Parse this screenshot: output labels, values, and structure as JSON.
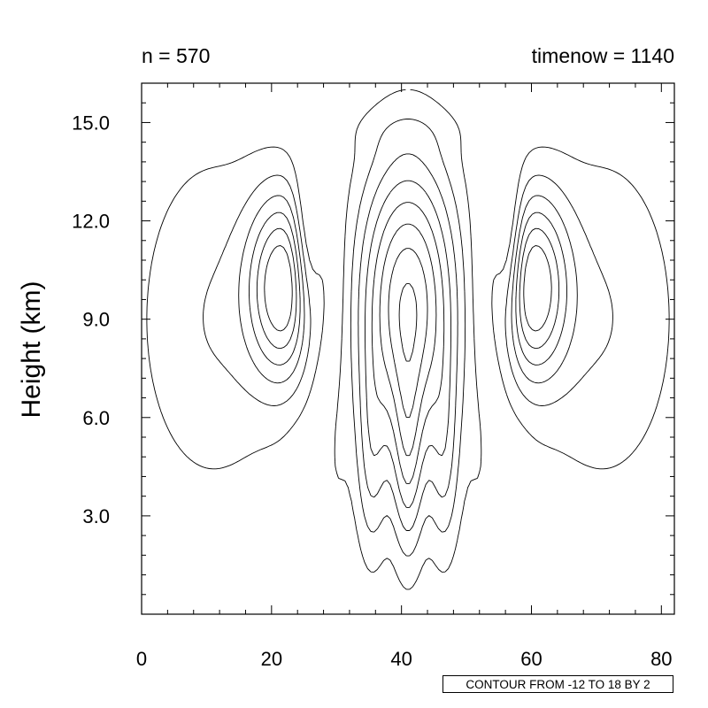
{
  "header": {
    "left_title": "n = 570",
    "right_title": "timenow = 1140"
  },
  "footer": {
    "contour_info": "CONTOUR FROM -12 TO 18 BY 2"
  },
  "chart_data": {
    "type": "contour",
    "ylabel": "Height (km)",
    "xlabel": "",
    "xlim": [
      0,
      82
    ],
    "ylim": [
      0,
      16.2
    ],
    "x_ticks": [
      0,
      20,
      40,
      60,
      80
    ],
    "x_tick_labels": [
      "0",
      "20",
      "40",
      "60",
      "80"
    ],
    "y_ticks": [
      3,
      6,
      9,
      12,
      15
    ],
    "y_tick_labels": [
      "3.0",
      "6.0",
      "9.0",
      "12.0",
      "15.0"
    ],
    "contour_levels": {
      "min": -12,
      "max": 18,
      "step": 2
    },
    "negative_contours": "dashed",
    "positive_contours": "solid",
    "grid": false,
    "colors": {
      "line": "#000000",
      "background": "#ffffff"
    }
  }
}
